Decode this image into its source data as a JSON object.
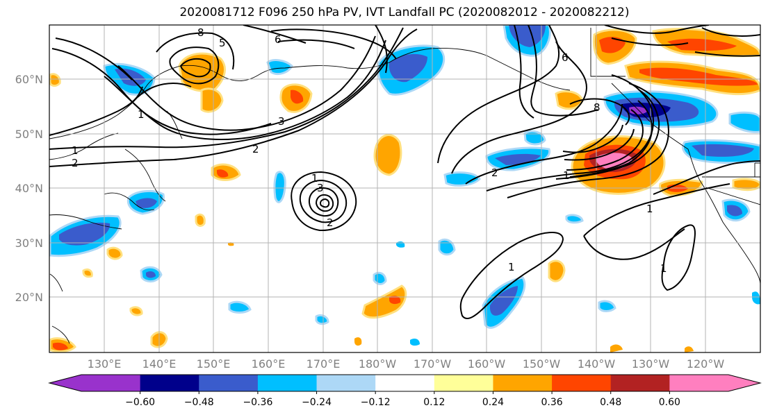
{
  "title": "2020081712 F096 250 hPa PV, IVT Landfall PC (2020082012 - 2020082212)",
  "lat_labels": [
    "60°N",
    "50°N",
    "40°N",
    "30°N",
    "20°N"
  ],
  "lon_labels": [
    "130°E",
    "140°E",
    "150°E",
    "160°E",
    "170°E",
    "180°W",
    "170°W",
    "160°W",
    "150°W",
    "140°W",
    "130°W",
    "120°W"
  ],
  "colorbar": {
    "colors": [
      "#9932cc",
      "#00008b",
      "#3a5ccc",
      "#00bfff",
      "#add8f6",
      "#ffffff",
      "#ffff99",
      "#ffa500",
      "#ff4500",
      "#b22222",
      "#ff7fbf"
    ],
    "under_color": "#9932cc",
    "over_color": "#ff7fbf",
    "tick_labels": [
      "−0.60",
      "−0.48",
      "−0.36",
      "−0.24",
      "−0.12",
      "0.12",
      "0.24",
      "0.36",
      "0.48",
      "0.60"
    ]
  },
  "contour_labels": [
    "1",
    "2",
    "3",
    "5",
    "6",
    "8",
    "1",
    "2",
    "1",
    "2",
    "3",
    "1",
    "1",
    "1",
    "1",
    "2",
    "6",
    "8"
  ]
}
